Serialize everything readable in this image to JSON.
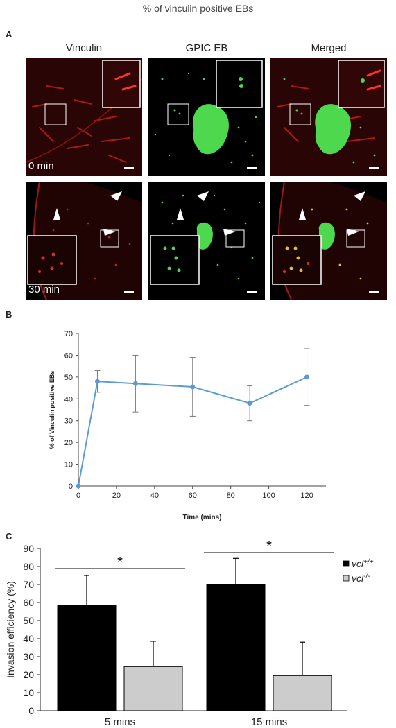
{
  "figure_title": "% of vinculin positive EBs",
  "panelA": {
    "letter": "A",
    "columns": [
      "Vinculin",
      "GPIC EB",
      "Merged"
    ],
    "time_labels": [
      "0 min",
      "30 min"
    ]
  },
  "panelB": {
    "letter": "B"
  },
  "panelC": {
    "letter": "C"
  },
  "colors": {
    "vinculin": "#d42020",
    "eb": "#4ed84e",
    "line": "#5b9bd5",
    "wt": "#000000",
    "ko": "#cccccc"
  },
  "chart_data": [
    {
      "type": "line",
      "xlabel": "Time (mins)",
      "ylabel": "% of Vinculin positive EBs",
      "xlim": [
        0,
        130
      ],
      "ylim": [
        0,
        70
      ],
      "xticks": [
        0,
        20,
        40,
        60,
        80,
        100,
        120
      ],
      "yticks": [
        0,
        10,
        20,
        30,
        40,
        50,
        60,
        70
      ],
      "x": [
        0,
        10,
        30,
        60,
        90,
        120
      ],
      "y": [
        0,
        48,
        47,
        45.5,
        38,
        50
      ],
      "y_err_low": [
        0,
        43,
        34,
        32,
        30,
        37
      ],
      "y_err_high": [
        0,
        53,
        60,
        59,
        46,
        63
      ],
      "grid": false
    },
    {
      "type": "bar",
      "ylabel": "Invasion efficiency (%)",
      "ylim": [
        0,
        90
      ],
      "yticks": [
        0,
        10,
        20,
        30,
        40,
        50,
        60,
        70,
        80,
        90
      ],
      "categories": [
        "5 mins",
        "15 mins"
      ],
      "series": [
        {
          "name": "vcl",
          "sup": "+/+",
          "values": [
            58.5,
            70
          ],
          "err": [
            16.5,
            14.5
          ]
        },
        {
          "name": "vcl",
          "sup": "-/-",
          "values": [
            24.5,
            19.5
          ],
          "err": [
            14,
            18.5
          ]
        }
      ],
      "significance": [
        "*",
        "*"
      ],
      "legend_position": "right"
    }
  ]
}
